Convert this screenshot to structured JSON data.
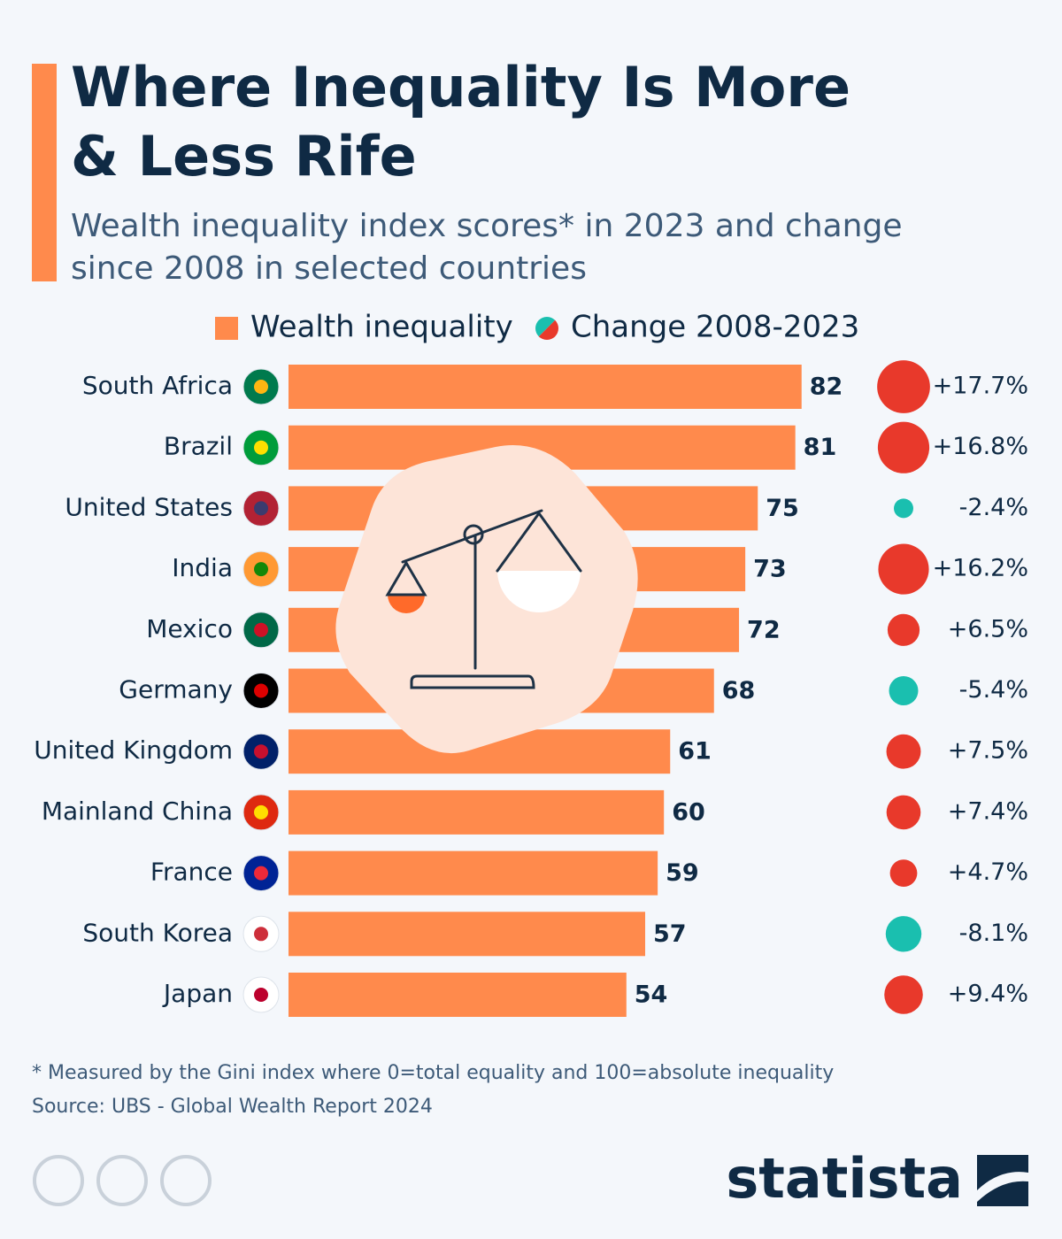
{
  "chart_data": {
    "type": "bar",
    "orientation": "horizontal",
    "title": "Where Inequality Is More & Less Rife",
    "subtitle": "Wealth inequality index scores* in 2023 and change since 2008 in selected countries",
    "categories": [
      "South Africa",
      "Brazil",
      "United States",
      "India",
      "Mexico",
      "Germany",
      "United Kingdom",
      "Mainland China",
      "France",
      "South Korea",
      "Japan"
    ],
    "series": [
      {
        "name": "Wealth inequality",
        "color": "#ff8a4c",
        "values": [
          82,
          81,
          75,
          73,
          72,
          68,
          61,
          60,
          59,
          57,
          54
        ]
      },
      {
        "name": "Change 2008-2023",
        "type": "bubble",
        "color": "#e8392b",
        "negative_color": "#1abfaf",
        "values": [
          17.7,
          16.8,
          -2.4,
          16.2,
          6.5,
          -5.4,
          7.5,
          7.4,
          4.7,
          -8.1,
          9.4
        ],
        "value_labels": [
          "+17.7%",
          "+16.8%",
          "-2.4%",
          "+16.2%",
          "+6.5%",
          "-5.4%",
          "+7.5%",
          "+7.4%",
          "+4.7%",
          "-8.1%",
          "+9.4%"
        ]
      }
    ],
    "footnote": "* Measured by the Gini index where 0=total equality and 100=absolute inequality",
    "source": "Source: UBS - Global Wealth Report 2024",
    "brand": "statista"
  }
}
